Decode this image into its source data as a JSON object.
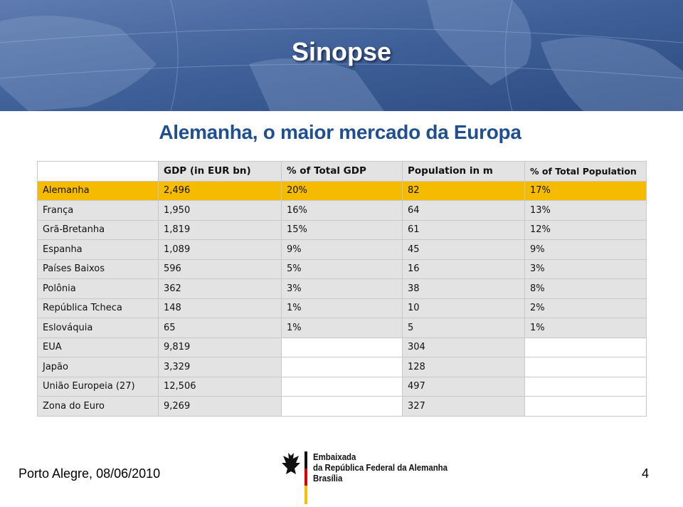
{
  "header": {
    "title": "Sinopse"
  },
  "subtitle": "Alemanha, o maior mercado da Europa",
  "table": {
    "header": [
      null,
      "GDP (in EUR bn)",
      "% of Total GDP",
      "Population in m",
      "% of Total Population"
    ],
    "rows": [
      [
        "Alemanha",
        "2,496",
        "20%",
        "82",
        "17%"
      ],
      [
        "França",
        "1,950",
        "16%",
        "64",
        "13%"
      ],
      [
        "Grã-Bretanha",
        "1,819",
        "15%",
        "61",
        "12%"
      ],
      [
        "Espanha",
        "1,089",
        "9%",
        "45",
        "9%"
      ],
      [
        "Países Baixos",
        "596",
        "5%",
        "16",
        "3%"
      ],
      [
        "Polônia",
        "362",
        "3%",
        "38",
        "8%"
      ],
      [
        "República Tcheca",
        "148",
        "1%",
        "10",
        "2%"
      ],
      [
        "Eslováquia",
        "65",
        "1%",
        "5",
        "1%"
      ],
      [
        "EUA",
        "9,819",
        null,
        "304",
        null
      ],
      [
        "Japão",
        "3,329",
        null,
        "128",
        null
      ],
      [
        "União Europeia (27)",
        "12,506",
        null,
        "497",
        null
      ],
      [
        "Zona do Euro",
        "9,269",
        null,
        "327",
        null
      ]
    ]
  },
  "footer": {
    "location_date": "Porto Alegre, 08/06/2010",
    "logo_lines": [
      "Embaixada",
      "da República Federal da Alemanha",
      "Brasília"
    ],
    "page": "4"
  }
}
